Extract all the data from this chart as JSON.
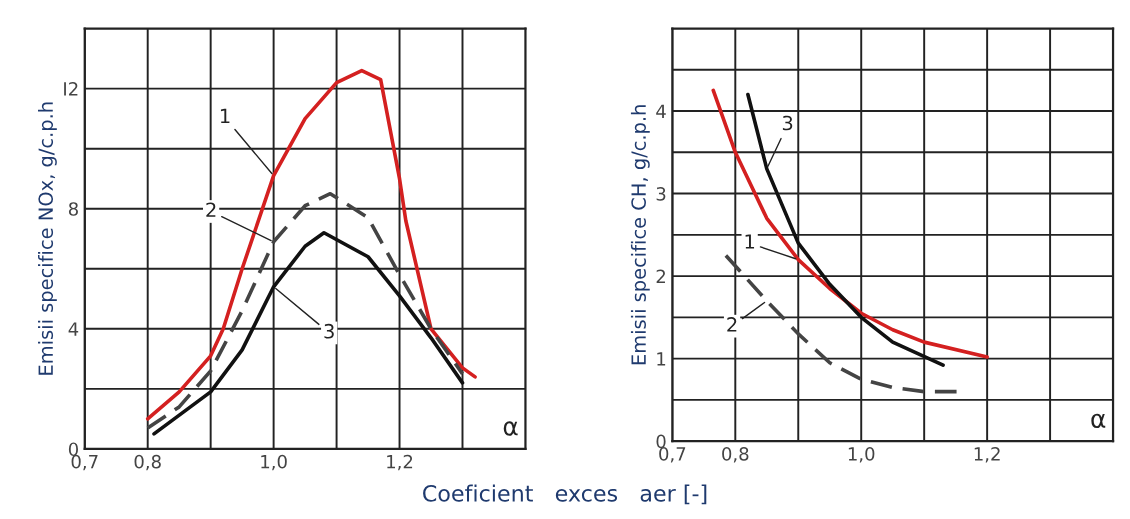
{
  "chart_data": [
    {
      "type": "line",
      "ylabel": "Emisii specifice NOx, g/c.p.h",
      "xlabel": "Coeficient   exces   aer [-]",
      "xlim": [
        0.7,
        1.4
      ],
      "xticks": [
        {
          "value": 0.7,
          "label": "0,7"
        },
        {
          "value": 0.8,
          "label": "0,8"
        },
        {
          "value": 0.9,
          "label": null
        },
        {
          "value": 1.0,
          "label": "1,0"
        },
        {
          "value": 1.1,
          "label": null
        },
        {
          "value": 1.2,
          "label": "1,2"
        },
        {
          "value": 1.3,
          "label": null
        }
      ],
      "ylim": [
        0,
        14
      ],
      "yticks": [
        0,
        {
          "value": 2,
          "label": null
        },
        4,
        {
          "value": 6,
          "label": null
        },
        8,
        {
          "value": 10,
          "label": null
        },
        {
          "value": 12,
          "label": "I2"
        }
      ],
      "grid": true,
      "series": [
        {
          "color": "#d42020",
          "line_style": "solid",
          "x": [
            0.8,
            0.85,
            0.9,
            0.92,
            0.95,
            1.0,
            1.05,
            1.1,
            1.14,
            1.17,
            1.2,
            1.21,
            1.25,
            1.3,
            1.32
          ],
          "values": [
            1.0,
            1.9,
            3.1,
            4.0,
            6.0,
            9.1,
            11.0,
            12.2,
            12.6,
            12.3,
            9.0,
            7.6,
            4.0,
            2.7,
            2.4
          ]
        },
        {
          "color": "#444444",
          "line_style": "dashed",
          "x": [
            0.8,
            0.85,
            0.9,
            0.95,
            1.0,
            1.05,
            1.09,
            1.15,
            1.2,
            1.25,
            1.3
          ],
          "values": [
            0.7,
            1.4,
            2.6,
            4.6,
            6.9,
            8.1,
            8.5,
            7.7,
            5.8,
            4.0,
            2.5
          ]
        },
        {
          "color": "#111111",
          "line_style": "solid",
          "x": [
            0.81,
            0.9,
            0.95,
            1.0,
            1.05,
            1.08,
            1.15,
            1.2,
            1.25,
            1.3
          ],
          "values": [
            0.5,
            1.9,
            3.3,
            5.4,
            6.75,
            7.2,
            6.4,
            5.1,
            3.7,
            2.2
          ]
        }
      ],
      "annotations": [
        {
          "text": "1",
          "x": 1.0,
          "y": 9.1
        },
        {
          "text": "2",
          "x": 1.0,
          "y": 6.9
        },
        {
          "text": "3",
          "x": 1.0,
          "y": 5.4
        },
        "α"
      ]
    },
    {
      "type": "line",
      "ylabel": "Emisii specifice CH, g/c.p.h",
      "xlim": [
        0.7,
        1.4
      ],
      "xticks": [
        {
          "value": 0.7,
          "label": "0,7"
        },
        {
          "value": 0.8,
          "label": "0,8"
        },
        {
          "value": 0.9,
          "label": null
        },
        {
          "value": 1.0,
          "label": "1,0"
        },
        {
          "value": 1.1,
          "label": null
        },
        {
          "value": 1.2,
          "label": "1,2"
        },
        {
          "value": 1.3,
          "label": null
        }
      ],
      "ylim": [
        0,
        5
      ],
      "yticks": [
        0,
        {
          "value": 0.5,
          "label": null
        },
        1,
        {
          "value": 1.5,
          "label": null
        },
        2,
        {
          "value": 2.5,
          "label": null
        },
        3,
        {
          "value": 3.5,
          "label": null
        },
        4,
        {
          "value": 4.5,
          "label": null
        }
      ],
      "grid": true,
      "series": [
        {
          "color": "#d42020",
          "line_style": "solid",
          "x": [
            0.765,
            0.8,
            0.85,
            0.9,
            0.95,
            1.0,
            1.05,
            1.1,
            1.2
          ],
          "values": [
            4.25,
            3.5,
            2.7,
            2.2,
            1.85,
            1.55,
            1.35,
            1.2,
            1.02
          ]
        },
        {
          "color": "#444444",
          "line_style": "dashed",
          "x": [
            0.785,
            0.85,
            0.9,
            0.95,
            1.0,
            1.05,
            1.1,
            1.155
          ],
          "values": [
            2.25,
            1.7,
            1.3,
            0.95,
            0.75,
            0.65,
            0.6,
            0.6
          ]
        },
        {
          "color": "#111111",
          "line_style": "solid",
          "x": [
            0.82,
            0.85,
            0.9,
            0.95,
            1.0,
            1.05,
            1.13
          ],
          "values": [
            4.2,
            3.3,
            2.4,
            1.9,
            1.5,
            1.2,
            0.92
          ]
        }
      ],
      "annotations": [
        {
          "text": "3",
          "x": 0.85,
          "y": 3.3
        },
        {
          "text": "1",
          "x": 0.9,
          "y": 2.2
        },
        {
          "text": "2",
          "x": 0.85,
          "y": 1.7
        },
        "α"
      ]
    }
  ]
}
